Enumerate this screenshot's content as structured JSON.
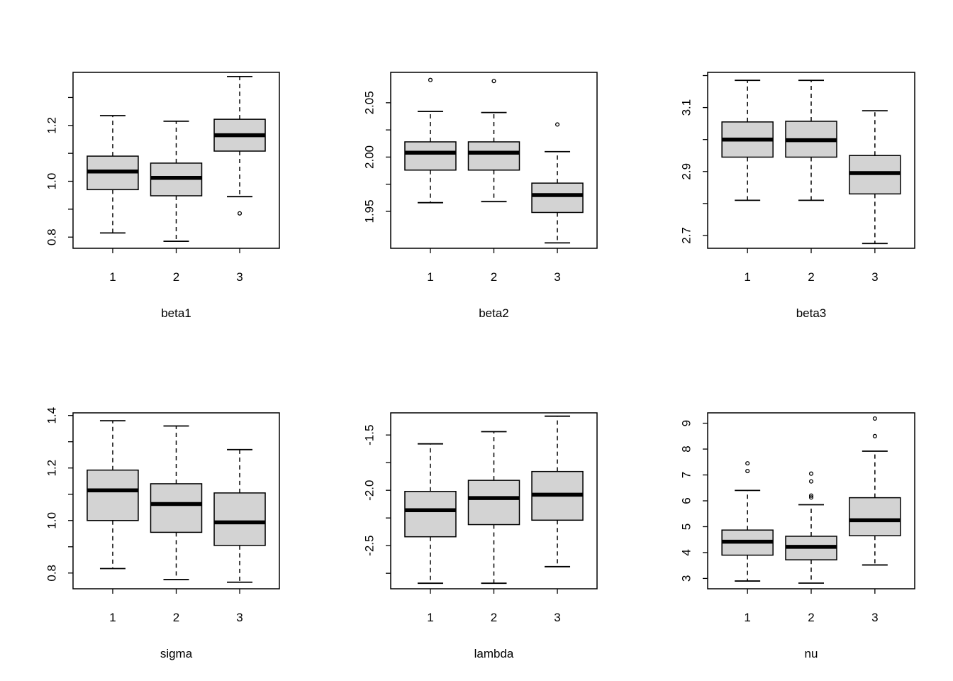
{
  "colors": {
    "box_fill": "#d3d3d3",
    "stroke": "#000000",
    "background": "#ffffff"
  },
  "chart_data": [
    {
      "type": "boxplot",
      "xlabel": "beta1",
      "categories": [
        "1",
        "2",
        "3"
      ],
      "ylim": [
        0.76,
        1.39
      ],
      "yticks": [
        0.8,
        1.0,
        1.2
      ],
      "ytick_labels": [
        "0.8",
        "1.0",
        "1.2"
      ],
      "yminor": [
        0.9,
        1.1,
        1.3
      ],
      "boxes": [
        {
          "lower_whisker": 0.815,
          "q1": 0.97,
          "median": 1.035,
          "q3": 1.09,
          "upper_whisker": 1.235,
          "outliers": []
        },
        {
          "lower_whisker": 0.785,
          "q1": 0.948,
          "median": 1.012,
          "q3": 1.065,
          "upper_whisker": 1.215,
          "outliers": []
        },
        {
          "lower_whisker": 0.945,
          "q1": 1.108,
          "median": 1.165,
          "q3": 1.222,
          "upper_whisker": 1.375,
          "outliers": [
            0.885
          ]
        }
      ]
    },
    {
      "type": "boxplot",
      "xlabel": "beta2",
      "categories": [
        "1",
        "2",
        "3"
      ],
      "ylim": [
        1.916,
        2.078
      ],
      "yticks": [
        1.95,
        2.0,
        2.05
      ],
      "ytick_labels": [
        "1.95",
        "2.00",
        "2.05"
      ],
      "yminor": [
        1.975,
        2.025
      ],
      "boxes": [
        {
          "lower_whisker": 1.958,
          "q1": 1.988,
          "median": 2.004,
          "q3": 2.014,
          "upper_whisker": 2.042,
          "outliers": [
            2.071
          ]
        },
        {
          "lower_whisker": 1.959,
          "q1": 1.988,
          "median": 2.004,
          "q3": 2.014,
          "upper_whisker": 2.041,
          "outliers": [
            2.07
          ]
        },
        {
          "lower_whisker": 1.921,
          "q1": 1.949,
          "median": 1.965,
          "q3": 1.976,
          "upper_whisker": 2.005,
          "outliers": [
            2.03
          ]
        }
      ]
    },
    {
      "type": "boxplot",
      "xlabel": "beta3",
      "categories": [
        "1",
        "2",
        "3"
      ],
      "ylim": [
        2.66,
        3.21
      ],
      "yticks": [
        2.7,
        2.9,
        3.1
      ],
      "ytick_labels": [
        "2.7",
        "2.9",
        "3.1"
      ],
      "yminor": [
        2.8,
        3.0,
        3.2
      ],
      "boxes": [
        {
          "lower_whisker": 2.81,
          "q1": 2.945,
          "median": 3.0,
          "q3": 3.055,
          "upper_whisker": 3.185,
          "outliers": []
        },
        {
          "lower_whisker": 2.81,
          "q1": 2.945,
          "median": 2.998,
          "q3": 3.057,
          "upper_whisker": 3.185,
          "outliers": []
        },
        {
          "lower_whisker": 2.675,
          "q1": 2.83,
          "median": 2.895,
          "q3": 2.95,
          "upper_whisker": 3.09,
          "outliers": []
        }
      ]
    },
    {
      "type": "boxplot",
      "xlabel": "sigma",
      "categories": [
        "1",
        "2",
        "3"
      ],
      "ylim": [
        0.74,
        1.41
      ],
      "yticks": [
        0.8,
        1.0,
        1.2,
        1.4
      ],
      "ytick_labels": [
        "0.8",
        "1.0",
        "1.2",
        "1.4"
      ],
      "yminor": [
        0.9,
        1.1,
        1.3
      ],
      "boxes": [
        {
          "lower_whisker": 0.817,
          "q1": 1.0,
          "median": 1.115,
          "q3": 1.192,
          "upper_whisker": 1.38,
          "outliers": []
        },
        {
          "lower_whisker": 0.775,
          "q1": 0.955,
          "median": 1.063,
          "q3": 1.14,
          "upper_whisker": 1.36,
          "outliers": []
        },
        {
          "lower_whisker": 0.765,
          "q1": 0.905,
          "median": 0.993,
          "q3": 1.105,
          "upper_whisker": 1.27,
          "outliers": []
        }
      ]
    },
    {
      "type": "boxplot",
      "xlabel": "lambda",
      "categories": [
        "1",
        "2",
        "3"
      ],
      "ylim": [
        -2.89,
        -1.3
      ],
      "yticks": [
        -2.5,
        -2.0,
        -1.5
      ],
      "ytick_labels": [
        "-2.5",
        "-2.0",
        "-1.5"
      ],
      "yminor": [
        -2.75,
        -2.25,
        -1.75
      ],
      "boxes": [
        {
          "lower_whisker": -2.84,
          "q1": -2.42,
          "median": -2.18,
          "q3": -2.01,
          "upper_whisker": -1.58,
          "outliers": []
        },
        {
          "lower_whisker": -2.84,
          "q1": -2.31,
          "median": -2.07,
          "q3": -1.91,
          "upper_whisker": -1.47,
          "outliers": []
        },
        {
          "lower_whisker": -2.69,
          "q1": -2.27,
          "median": -2.04,
          "q3": -1.83,
          "upper_whisker": -1.33,
          "outliers": []
        }
      ]
    },
    {
      "type": "boxplot",
      "xlabel": "nu",
      "categories": [
        "1",
        "2",
        "3"
      ],
      "ylim": [
        2.6,
        9.4
      ],
      "yticks": [
        3,
        4,
        5,
        6,
        7,
        8,
        9
      ],
      "ytick_labels": [
        "3",
        "4",
        "5",
        "6",
        "7",
        "8",
        "9"
      ],
      "yminor": [],
      "boxes": [
        {
          "lower_whisker": 2.9,
          "q1": 3.9,
          "median": 4.42,
          "q3": 4.87,
          "upper_whisker": 6.4,
          "outliers": [
            7.15,
            7.45
          ]
        },
        {
          "lower_whisker": 2.82,
          "q1": 3.72,
          "median": 4.22,
          "q3": 4.63,
          "upper_whisker": 5.85,
          "outliers": [
            6.13,
            6.2,
            6.75,
            7.05
          ]
        },
        {
          "lower_whisker": 3.52,
          "q1": 4.65,
          "median": 5.25,
          "q3": 6.12,
          "upper_whisker": 7.92,
          "outliers": [
            8.5,
            9.18
          ]
        }
      ]
    }
  ]
}
